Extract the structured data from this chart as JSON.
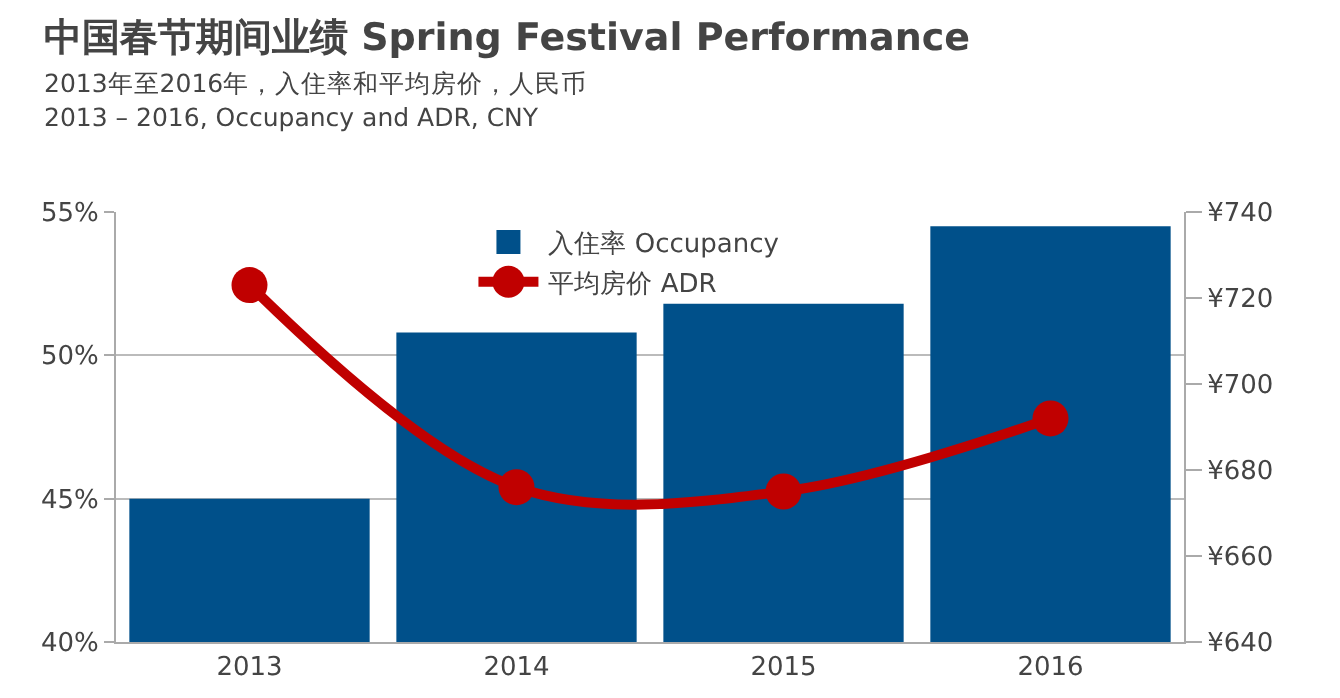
{
  "chart_data": {
    "type": "bar",
    "title": "中国春节期间业绩 Spring Festival Performance",
    "subtitle": "2013年至2016年，入住率和平均房价，人民币\n2013 – 2016, Occupancy and ADR, CNY",
    "categories": [
      "2013",
      "2014",
      "2015",
      "2016"
    ],
    "series": [
      {
        "name": "入住率 Occupancy",
        "color": "#00508a",
        "values": [
          45.0,
          50.8,
          51.8,
          54.5
        ]
      },
      {
        "name": "平均房价 ADR",
        "type": "line",
        "axis": "y2",
        "color": "#c00000",
        "values": [
          723,
          676,
          675,
          692
        ]
      }
    ],
    "ylim": [
      40,
      55
    ],
    "yticks": [
      {
        "value": 40,
        "label": "40%"
      },
      {
        "value": 45,
        "label": "45%"
      },
      {
        "value": 50,
        "label": "50%"
      },
      {
        "value": 55,
        "label": "55%"
      }
    ],
    "y2lim": [
      640,
      740
    ],
    "y2ticks": [
      {
        "value": 640,
        "label": "¥640"
      },
      {
        "value": 660,
        "label": "¥660"
      },
      {
        "value": 680,
        "label": "¥680"
      },
      {
        "value": 700,
        "label": "¥700"
      },
      {
        "value": 720,
        "label": "¥720"
      },
      {
        "value": 740,
        "label": "¥740"
      }
    ],
    "grid": "y",
    "legend": "top",
    "marker": "circle",
    "line_style": "solid"
  }
}
